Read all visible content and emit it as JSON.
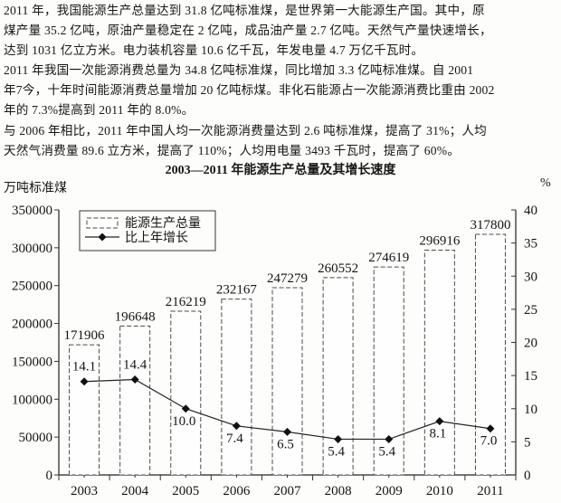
{
  "intro": {
    "lines": [
      "2011 年，我国能源生产总量达到 31.8 亿吨标准煤，是世界第一大能源生产国。其中，原",
      "煤产量 35.2 亿吨，原油产量稳定在 2 亿吨，成品油产量 2.7 亿吨。天然气产量快速增长，",
      "达到 1031 亿立方米。电力装机容量 10.6 亿千瓦，年发电量 4.7 万亿千瓦时。",
      "2011 年我国一次能源消费总量为 34.8 亿吨标准煤，同比增加 3.3 亿吨标准煤。自 2001",
      "年7今，十年时间能源消费总量增加 20 亿吨标煤。非化石能源占一次能源消费比重由 2002",
      "年的 7.3%提高到 2011 年的 8.0%。",
      "与 2006 年相比，2011 年中国人均一次能源消费量达到 2.6 吨标准煤，提高了 31%；人均",
      "天然气消费量 89.6 立方米，提高了 110%；人均用电量 3493 千瓦时，提高了 60%。"
    ]
  },
  "chart_data": {
    "type": "bar",
    "combo": "bar+line",
    "title": "2003—2011 年能源生产总量及其增长速度",
    "left_axis_label": "万吨标准煤",
    "right_axis_label": "%",
    "categories": [
      "2003",
      "2004",
      "2005",
      "2006",
      "2007",
      "2008",
      "2009",
      "2010",
      "2011"
    ],
    "series": [
      {
        "name": "能源生产总量",
        "type": "bar",
        "axis": "left",
        "values": [
          171906,
          196648,
          216219,
          232167,
          247279,
          260552,
          274619,
          296916,
          317800
        ]
      },
      {
        "name": "比上年增长",
        "type": "line",
        "axis": "right",
        "values": [
          14.1,
          14.4,
          10.0,
          7.4,
          6.5,
          5.4,
          5.4,
          8.1,
          7.0
        ]
      }
    ],
    "left_axis": {
      "min": 0,
      "max": 350000,
      "step": 50000
    },
    "right_axis": {
      "min": 0,
      "max": 40,
      "step": 5
    },
    "legend_position": "top-left-inside",
    "grid": false,
    "bar_fill": "#fefefe",
    "stroke_color": "#222222",
    "text_color": "#141414"
  }
}
